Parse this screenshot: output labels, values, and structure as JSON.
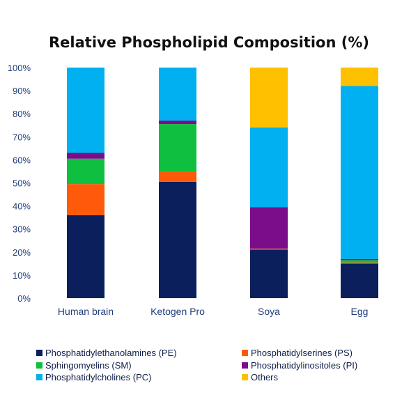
{
  "chart_data": {
    "type": "bar",
    "stacked": true,
    "title": "Relative Phospholipid Composition (%)",
    "categories": [
      "Human brain",
      "Ketogen Pro",
      "Soya",
      "Egg"
    ],
    "ylim": [
      0,
      100
    ],
    "yticks": [
      "0%",
      "10%",
      "20%",
      "30%",
      "40%",
      "50%",
      "60%",
      "70%",
      "80%",
      "90%",
      "100%"
    ],
    "grid": false,
    "legend_position": "bottom",
    "series": [
      {
        "name": "Phosphatidylethanolamines (PE)",
        "color": "#0b1f5c",
        "values": [
          36,
          50.5,
          21,
          15
        ]
      },
      {
        "name": "Phosphatidylserines (PS)",
        "color": "#ff5a0a",
        "values": [
          13.5,
          4.5,
          0.5,
          0.5
        ]
      },
      {
        "name": "Sphingomyelins (SM)",
        "color": "#0fbf3f",
        "values": [
          11,
          20.5,
          0,
          1
        ]
      },
      {
        "name": "Phosphatidylinositoles (PI)",
        "color": "#7b0c8a",
        "values": [
          2.5,
          1.5,
          18,
          0.5
        ]
      },
      {
        "name": "Phosphatidylcholines (PC)",
        "color": "#00b0f0",
        "values": [
          37,
          23,
          34.5,
          75
        ]
      },
      {
        "name": "Others",
        "color": "#ffc000",
        "values": [
          0,
          0,
          26,
          8
        ]
      }
    ]
  }
}
